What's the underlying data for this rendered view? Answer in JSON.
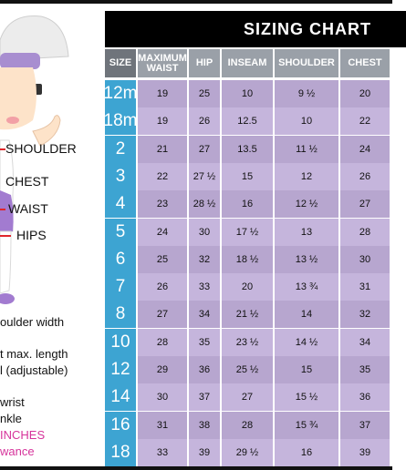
{
  "measure_labels": {
    "shoulder": "SHOULDER",
    "chest": "CHEST",
    "waist": "WAIST",
    "hips": "HIPS"
  },
  "notes": [
    {
      "text": "oulder width",
      "pink": false
    },
    {
      "text": "t max. length",
      "pink": false
    },
    {
      "text": "l (adjustable)",
      "pink": false
    },
    {
      "text": "wrist",
      "pink": false
    },
    {
      "text": "nkle",
      "pink": false
    },
    {
      "text": "INCHES",
      "pink": true
    },
    {
      "text": "wance",
      "pink": true
    }
  ],
  "colors": {
    "title_bg": "#000000",
    "header_bg": "#9aa0a8",
    "size_col": "#3da4d2",
    "value_cell": "#b7a6cf",
    "accent_pink": "#d6339b",
    "marker_red": "#e0262b"
  },
  "chart": {
    "title": "SIZING CHART",
    "headers": [
      "SIZE",
      "MAXIMUM WAIST",
      "HIP",
      "INSEAM",
      "SHOULDER",
      "CHEST"
    ],
    "rows": [
      [
        "12m",
        "19",
        "25",
        "10",
        "9 ½",
        "20"
      ],
      [
        "18m",
        "19",
        "26",
        "12.5",
        "10",
        "22"
      ],
      [
        "2",
        "21",
        "27",
        "13.5",
        "11 ½",
        "24"
      ],
      [
        "3",
        "22",
        "27 ½",
        "15",
        "12",
        "26"
      ],
      [
        "4",
        "23",
        "28 ½",
        "16",
        "12 ½",
        "27"
      ],
      [
        "5",
        "24",
        "30",
        "17 ½",
        "13",
        "28"
      ],
      [
        "6",
        "25",
        "32",
        "18 ½",
        "13 ½",
        "30"
      ],
      [
        "7",
        "26",
        "33",
        "20",
        "13 ¾",
        "31"
      ],
      [
        "8",
        "27",
        "34",
        "21 ½",
        "14",
        "32"
      ],
      [
        "10",
        "28",
        "35",
        "23 ½",
        "14 ½",
        "34"
      ],
      [
        "12",
        "29",
        "36",
        "25 ½",
        "15",
        "35"
      ],
      [
        "14",
        "30",
        "37",
        "27",
        "15 ½",
        "36"
      ],
      [
        "16",
        "31",
        "38",
        "28",
        "15 ¾",
        "37"
      ],
      [
        "18",
        "33",
        "39",
        "29 ½",
        "16",
        "39"
      ]
    ]
  }
}
